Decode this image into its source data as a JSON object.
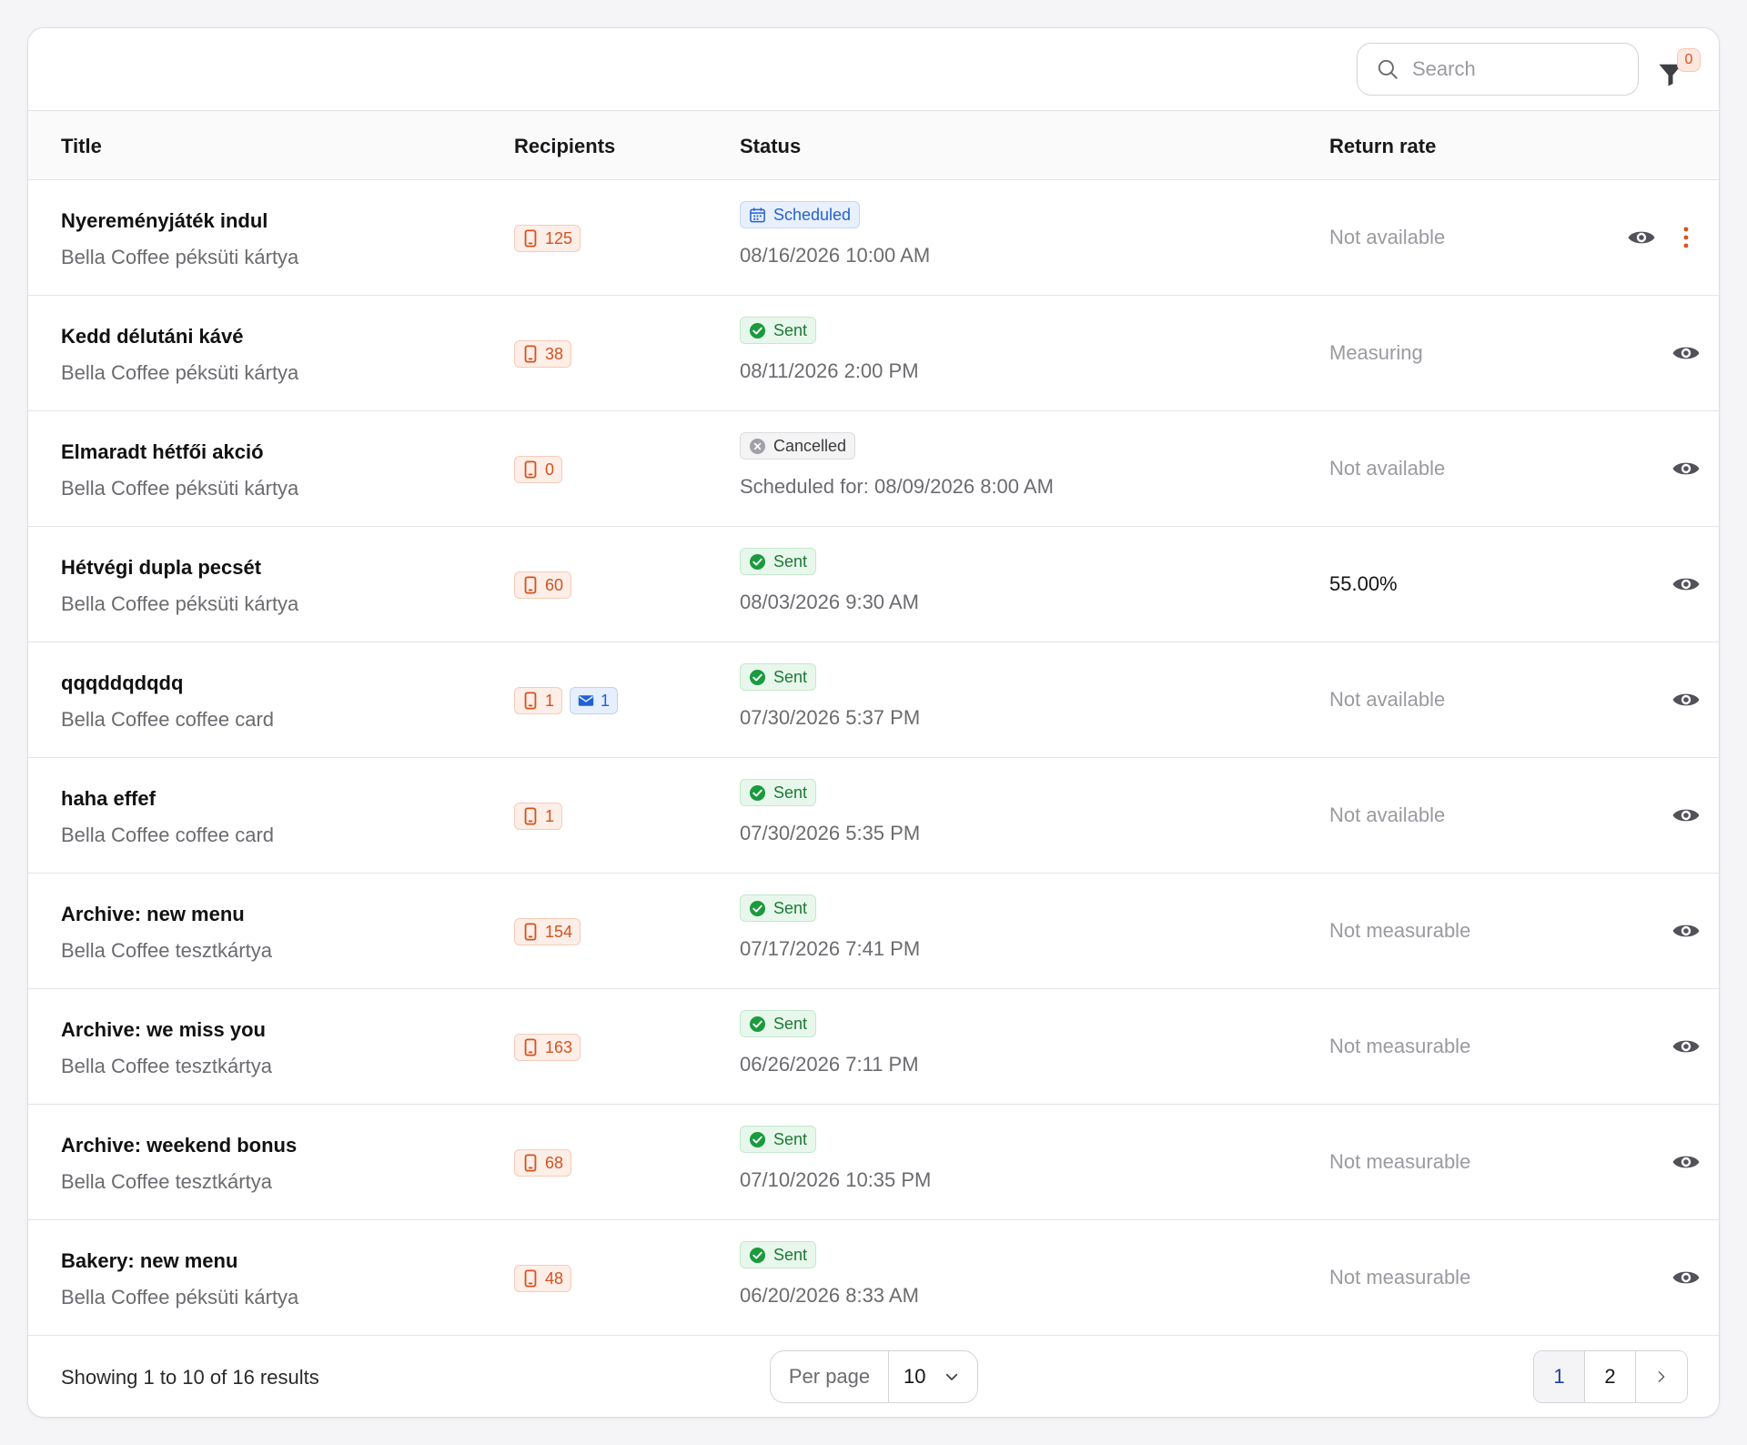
{
  "search": {
    "placeholder": "Search"
  },
  "filter": {
    "count": "0"
  },
  "columns": {
    "title": "Title",
    "recipients": "Recipients",
    "status": "Status",
    "return_rate": "Return rate"
  },
  "rows": [
    {
      "title": "Nyereményjáték indul",
      "subtitle": "Bella Coffee péksüti kártya",
      "phone": "125",
      "status": "Scheduled",
      "status_date": "08/16/2026 10:00 AM",
      "return_rate": "Not available"
    },
    {
      "title": "Kedd délutáni kávé",
      "subtitle": "Bella Coffee péksüti kártya",
      "phone": "38",
      "status": "Sent",
      "status_date": "08/11/2026 2:00 PM",
      "return_rate": "Measuring"
    },
    {
      "title": "Elmaradt hétfői akció",
      "subtitle": "Bella Coffee péksüti kártya",
      "phone": "0",
      "status": "Cancelled",
      "status_date": "Scheduled for: 08/09/2026 8:00 AM",
      "return_rate": "Not available"
    },
    {
      "title": "Hétvégi dupla pecsét",
      "subtitle": "Bella Coffee péksüti kártya",
      "phone": "60",
      "status": "Sent",
      "status_date": "08/03/2026 9:30 AM",
      "return_rate": "55.00%"
    },
    {
      "title": "qqqddqdqdq",
      "subtitle": "Bella Coffee coffee card",
      "phone": "1",
      "email": "1",
      "status": "Sent",
      "status_date": "07/30/2026 5:37 PM",
      "return_rate": "Not available"
    },
    {
      "title": "haha effef",
      "subtitle": "Bella Coffee coffee card",
      "phone": "1",
      "status": "Sent",
      "status_date": "07/30/2026 5:35 PM",
      "return_rate": "Not available"
    },
    {
      "title": "Archive: new menu",
      "subtitle": "Bella Coffee tesztkártya",
      "phone": "154",
      "status": "Sent",
      "status_date": "07/17/2026 7:41 PM",
      "return_rate": "Not measurable"
    },
    {
      "title": "Archive: we miss you",
      "subtitle": "Bella Coffee tesztkártya",
      "phone": "163",
      "status": "Sent",
      "status_date": "06/26/2026 7:11 PM",
      "return_rate": "Not measurable"
    },
    {
      "title": "Archive: weekend bonus",
      "subtitle": "Bella Coffee tesztkártya",
      "phone": "68",
      "status": "Sent",
      "status_date": "07/10/2026 10:35 PM",
      "return_rate": "Not measurable"
    },
    {
      "title": "Bakery: new menu",
      "subtitle": "Bella Coffee péksüti kártya",
      "phone": "48",
      "status": "Sent",
      "status_date": "06/20/2026 8:33 AM",
      "return_rate": "Not measurable"
    }
  ],
  "footer": {
    "showing": "Showing 1 to 10 of 16 results",
    "per_page_label": "Per page",
    "per_page_value": "10",
    "pages": [
      "1",
      "2"
    ]
  },
  "icons": {
    "search": "search-icon",
    "filter": "filter-icon",
    "phone": "phone-icon",
    "email": "envelope-icon",
    "scheduled": "calendar-icon",
    "sent": "check-circle-icon",
    "cancelled": "x-circle-icon",
    "view": "eye-icon",
    "more": "kebab-menu-icon"
  },
  "colors": {
    "phone_chip": "#d4521f",
    "email_chip": "#2260d6",
    "sent": "#1b7a34",
    "scheduled": "#2462d4",
    "accent_page": "#1d3fa8"
  }
}
